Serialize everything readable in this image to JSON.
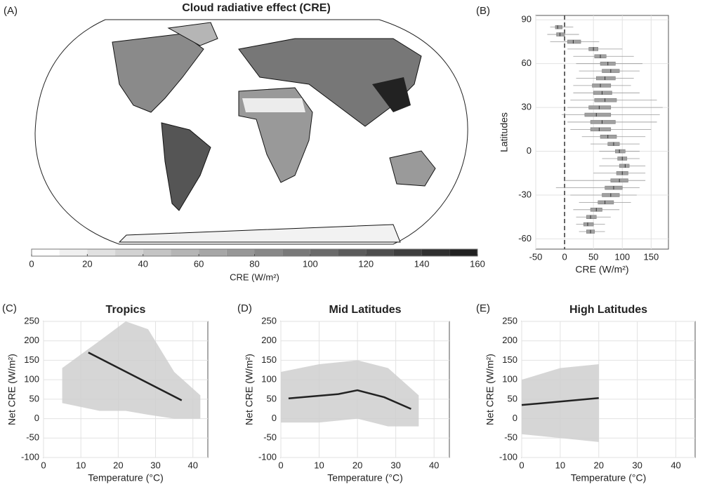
{
  "chart_data": [
    {
      "type": "map",
      "panel": "(A)",
      "title": "Cloud radiative effect (CRE)",
      "colorbar_label": "CRE (W/m²)",
      "clim": [
        0,
        160
      ],
      "cticks": [
        0,
        20,
        40,
        60,
        80,
        100,
        120,
        140,
        160
      ],
      "colormap": [
        "#ffffff",
        "#111111"
      ]
    },
    {
      "type": "box",
      "panel": "(B)",
      "xlabel": "CRE (W/m²)",
      "ylabel": "Latitudes",
      "xlim": [
        -50,
        180
      ],
      "ylim": [
        -67,
        93
      ],
      "xticks": [
        -50,
        0,
        50,
        100,
        150
      ],
      "yticks": [
        -60,
        -30,
        0,
        30,
        60,
        90
      ],
      "grid": true,
      "vline": 0,
      "color": "#a0a0a0",
      "y": [
        85,
        80,
        75,
        70,
        65,
        60,
        55,
        50,
        45,
        40,
        35,
        30,
        25,
        20,
        15,
        10,
        5,
        0,
        -5,
        -10,
        -15,
        -20,
        -25,
        -30,
        -35,
        -40,
        -45,
        -50,
        -55
      ],
      "low": [
        -25,
        -30,
        -25,
        5,
        15,
        20,
        25,
        20,
        15,
        15,
        10,
        5,
        -5,
        5,
        10,
        30,
        45,
        60,
        65,
        60,
        50,
        0,
        -15,
        10,
        25,
        15,
        20,
        20,
        25
      ],
      "q1": [
        -16,
        -14,
        5,
        42,
        52,
        62,
        65,
        55,
        48,
        50,
        52,
        42,
        35,
        45,
        45,
        62,
        75,
        88,
        92,
        95,
        90,
        80,
        70,
        65,
        58,
        45,
        38,
        33,
        38
      ],
      "median": [
        -12,
        -8,
        15,
        50,
        62,
        75,
        80,
        70,
        62,
        65,
        70,
        60,
        55,
        65,
        60,
        75,
        85,
        95,
        100,
        105,
        100,
        95,
        85,
        80,
        70,
        55,
        45,
        40,
        45
      ],
      "q3": [
        -4,
        0,
        28,
        58,
        72,
        88,
        95,
        88,
        80,
        82,
        90,
        80,
        80,
        88,
        80,
        90,
        95,
        105,
        108,
        112,
        110,
        110,
        100,
        95,
        85,
        65,
        55,
        50,
        52
      ],
      "high": [
        15,
        25,
        60,
        100,
        120,
        135,
        130,
        120,
        115,
        130,
        160,
        170,
        165,
        160,
        150,
        140,
        130,
        130,
        130,
        140,
        140,
        140,
        130,
        125,
        115,
        95,
        80,
        70,
        70
      ]
    },
    {
      "type": "line",
      "panel": "(C)",
      "title": "Tropics",
      "xlabel": "Temperature (°C)",
      "ylabel": "Net CRE (W/m²)",
      "xlim": [
        0,
        44
      ],
      "ylim": [
        -100,
        250
      ],
      "xticks": [
        0,
        10,
        20,
        30,
        40
      ],
      "yticks": [
        -100,
        -50,
        0,
        50,
        100,
        150,
        200,
        250
      ],
      "grid": true,
      "x": [
        12,
        37
      ],
      "values": [
        170,
        47
      ],
      "color": "#222222",
      "spread": {
        "x": [
          5,
          15,
          22,
          28,
          35,
          42
        ],
        "lower": [
          40,
          20,
          20,
          10,
          0,
          0
        ],
        "upper": [
          130,
          200,
          250,
          230,
          120,
          60
        ],
        "color": "#cfcfcf"
      }
    },
    {
      "type": "line",
      "panel": "(D)",
      "title": "Mid Latitudes",
      "xlabel": "Temperature (°C)",
      "ylabel": "Net CRE (W/m²)",
      "xlim": [
        0,
        44
      ],
      "ylim": [
        -100,
        250
      ],
      "xticks": [
        0,
        10,
        20,
        30,
        40
      ],
      "yticks": [
        -100,
        -50,
        0,
        50,
        100,
        150,
        200,
        250
      ],
      "grid": true,
      "x": [
        2,
        15,
        20,
        27,
        34
      ],
      "values": [
        52,
        63,
        73,
        55,
        25
      ],
      "color": "#222222",
      "spread": {
        "x": [
          0,
          10,
          20,
          28,
          36
        ],
        "lower": [
          -10,
          -10,
          0,
          -20,
          -20
        ],
        "upper": [
          120,
          140,
          150,
          130,
          60
        ],
        "color": "#cfcfcf"
      }
    },
    {
      "type": "line",
      "panel": "(E)",
      "title": "High Latitudes",
      "xlabel": "Temperature (°C)",
      "ylabel": "Net CRE (W/m²)",
      "xlim": [
        0,
        45
      ],
      "ylim": [
        -100,
        250
      ],
      "xticks": [
        0,
        10,
        20,
        30,
        40
      ],
      "yticks": [
        -100,
        -50,
        0,
        50,
        100,
        150,
        200,
        250
      ],
      "grid": true,
      "x": [
        0,
        20
      ],
      "values": [
        35,
        53
      ],
      "color": "#222222",
      "spread": {
        "x": [
          0,
          10,
          20
        ],
        "lower": [
          -40,
          -50,
          -60
        ],
        "upper": [
          100,
          130,
          140
        ],
        "color": "#cfcfcf"
      }
    }
  ]
}
